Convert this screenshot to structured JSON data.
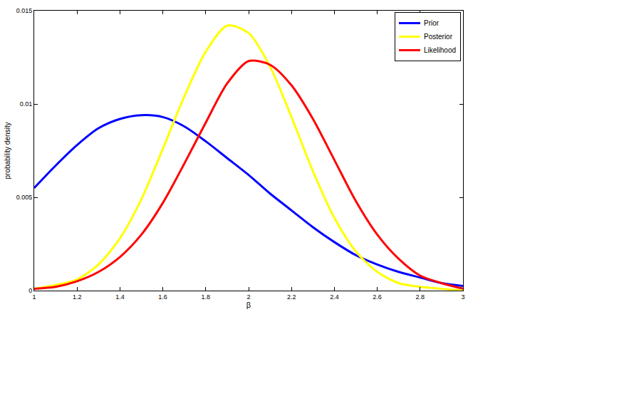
{
  "chart_data": {
    "type": "line",
    "x_label": "β",
    "y_label": "probability density",
    "x": [
      1.0,
      1.1,
      1.2,
      1.3,
      1.4,
      1.5,
      1.6,
      1.7,
      1.8,
      1.9,
      2.0,
      2.1,
      2.2,
      2.3,
      2.4,
      2.5,
      2.6,
      2.7,
      2.8,
      2.9,
      3.0
    ],
    "series": [
      {
        "name": "Prior",
        "color": "#0000ff",
        "values": [
          0.0055,
          0.0067,
          0.0078,
          0.0087,
          0.0092,
          0.0094,
          0.0093,
          0.0088,
          0.008,
          0.0071,
          0.0062,
          0.0052,
          0.0043,
          0.0034,
          0.0026,
          0.0019,
          0.0014,
          0.001,
          0.0007,
          0.0004,
          0.00025
        ]
      },
      {
        "name": "Posterior",
        "color": "#ffff00",
        "values": [
          0.0001,
          0.0003,
          0.0006,
          0.0014,
          0.0028,
          0.0049,
          0.0076,
          0.0104,
          0.0128,
          0.0142,
          0.0138,
          0.012,
          0.0093,
          0.0064,
          0.0039,
          0.0021,
          0.001,
          0.0004,
          0.0002,
          0.0001,
          0
        ]
      },
      {
        "name": "Likelihood",
        "color": "#ff0000",
        "values": [
          0.0001,
          0.0002,
          0.0005,
          0.001,
          0.0018,
          0.003,
          0.0047,
          0.0068,
          0.009,
          0.0111,
          0.0123,
          0.0121,
          0.011,
          0.0092,
          0.007,
          0.0048,
          0.003,
          0.0017,
          0.0008,
          0.0004,
          0.0001
        ]
      }
    ],
    "xlim": [
      1,
      3
    ],
    "xticks": [
      1,
      1.2,
      1.4,
      1.6,
      1.8,
      2,
      2.2,
      2.4,
      2.6,
      2.8,
      3
    ],
    "ylim": [
      0,
      0.015
    ],
    "yticks": [
      0,
      0.005,
      0.01,
      0.015
    ],
    "grid": false,
    "legend": "top right"
  }
}
